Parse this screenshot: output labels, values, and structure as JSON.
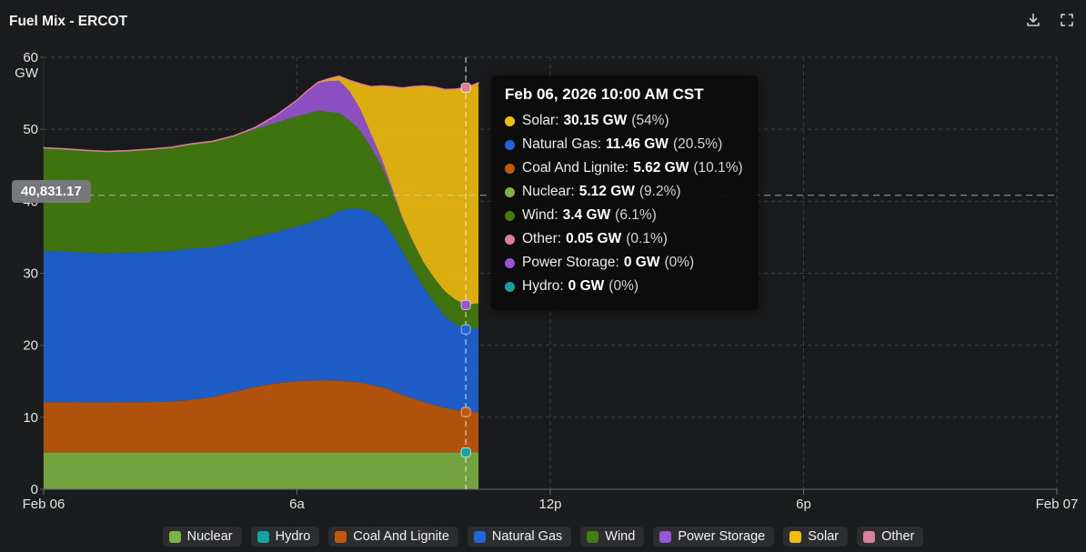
{
  "header": {
    "title": "Fuel Mix - ERCOT",
    "download_icon": "download",
    "fullscreen_icon": "fullscreen"
  },
  "axis_pointer": {
    "label": "40,831.17",
    "value_gw": 40.83
  },
  "crosshair": {
    "time_hours": 10
  },
  "tooltip": {
    "title": "Feb 06, 2026 10:00 AM CST",
    "rows": [
      {
        "name": "Solar",
        "value": "30.15 GW",
        "percent": "(54%)",
        "color": "#F2BE0E"
      },
      {
        "name": "Natural Gas",
        "value": "11.46 GW",
        "percent": "(20.5%)",
        "color": "#1F65D8"
      },
      {
        "name": "Coal And Lignite",
        "value": "5.62 GW",
        "percent": "(10.1%)",
        "color": "#C2590B"
      },
      {
        "name": "Nuclear",
        "value": "5.12 GW",
        "percent": "(9.2%)",
        "color": "#7CB342"
      },
      {
        "name": "Wind",
        "value": "3.4 GW",
        "percent": "(6.1%)",
        "color": "#437D0F"
      },
      {
        "name": "Other",
        "value": "0.05 GW",
        "percent": "(0.1%)",
        "color": "#DC7F9B"
      },
      {
        "name": "Power Storage",
        "value": "0 GW",
        "percent": "(0%)",
        "color": "#9855D4"
      },
      {
        "name": "Hydro",
        "value": "0 GW",
        "percent": "(0%)",
        "color": "#16A1A4"
      }
    ]
  },
  "legend": {
    "items": [
      {
        "label": "Nuclear",
        "color": "#7CB342"
      },
      {
        "label": "Hydro",
        "color": "#16A1A4"
      },
      {
        "label": "Coal And Lignite",
        "color": "#C2590B"
      },
      {
        "label": "Natural Gas",
        "color": "#1F65D8"
      },
      {
        "label": "Wind",
        "color": "#437D0F"
      },
      {
        "label": "Power Storage",
        "color": "#9855D4"
      },
      {
        "label": "Solar",
        "color": "#F2BE0E"
      },
      {
        "label": "Other",
        "color": "#DC7F9B"
      }
    ]
  },
  "chart_data": {
    "type": "area",
    "stacked": true,
    "title": "Fuel Mix - ERCOT",
    "ylabel": "GW",
    "ylim": [
      0,
      60
    ],
    "y_ticks": [
      0,
      10,
      20,
      30,
      40,
      50,
      60
    ],
    "x_unit": "hours after Feb 06 00:00",
    "x_ticks": [
      {
        "t": 0,
        "label": "Feb 06"
      },
      {
        "t": 6,
        "label": "6a"
      },
      {
        "t": 12,
        "label": "12p"
      },
      {
        "t": 18,
        "label": "6p"
      },
      {
        "t": 24,
        "label": "Feb 07"
      }
    ],
    "grid": true,
    "legend_position": "bottom",
    "x": [
      0,
      0.5,
      1,
      1.5,
      2,
      2.5,
      3,
      3.5,
      4,
      4.5,
      5,
      5.5,
      6,
      6.25,
      6.5,
      6.75,
      7,
      7.25,
      7.5,
      7.75,
      8,
      8.25,
      8.5,
      8.75,
      9,
      9.25,
      9.5,
      9.75,
      10,
      10.3
    ],
    "series": [
      {
        "name": "Nuclear",
        "color": "#7CB342",
        "values": [
          5.1,
          5.1,
          5.1,
          5.1,
          5.1,
          5.1,
          5.1,
          5.1,
          5.1,
          5.1,
          5.1,
          5.1,
          5.1,
          5.1,
          5.1,
          5.1,
          5.1,
          5.1,
          5.1,
          5.1,
          5.1,
          5.1,
          5.1,
          5.1,
          5.1,
          5.1,
          5.1,
          5.1,
          5.12,
          5.12
        ]
      },
      {
        "name": "Hydro",
        "color": "#16A1A4",
        "values": [
          0,
          0,
          0,
          0,
          0,
          0,
          0,
          0,
          0,
          0,
          0,
          0,
          0,
          0,
          0,
          0,
          0,
          0,
          0,
          0,
          0,
          0,
          0,
          0,
          0,
          0,
          0,
          0,
          0,
          0
        ]
      },
      {
        "name": "Coal And Lignite",
        "color": "#C2590B",
        "values": [
          7.0,
          7.0,
          6.95,
          6.95,
          7.0,
          7.0,
          7.05,
          7.3,
          7.7,
          8.4,
          9.1,
          9.6,
          9.9,
          9.95,
          10.0,
          10.0,
          9.95,
          9.85,
          9.7,
          9.4,
          9.1,
          8.6,
          8.0,
          7.5,
          7.0,
          6.6,
          6.2,
          5.9,
          5.62,
          5.6
        ]
      },
      {
        "name": "Natural Gas",
        "color": "#1F65D8",
        "values": [
          21.0,
          20.9,
          20.8,
          20.7,
          20.7,
          20.8,
          20.9,
          21.0,
          20.8,
          20.7,
          20.8,
          21.0,
          21.5,
          21.8,
          22.3,
          22.7,
          23.6,
          24.0,
          24.2,
          23.9,
          23.3,
          21.8,
          19.9,
          17.8,
          15.9,
          14.2,
          12.7,
          11.9,
          11.46,
          11.6
        ]
      },
      {
        "name": "Wind",
        "color": "#437D0F",
        "values": [
          14.3,
          14.25,
          14.2,
          14.15,
          14.2,
          14.3,
          14.4,
          14.55,
          14.7,
          14.85,
          15.0,
          15.2,
          15.3,
          15.3,
          15.2,
          14.6,
          13.6,
          12.3,
          10.8,
          9.1,
          7.5,
          5.9,
          4.5,
          3.9,
          3.5,
          3.45,
          3.5,
          3.45,
          3.4,
          3.5
        ]
      },
      {
        "name": "Power Storage",
        "color": "#9855D4",
        "values": [
          0,
          0,
          0,
          0,
          0,
          0,
          0,
          0,
          0,
          0,
          0.2,
          1.0,
          2.2,
          3.2,
          3.8,
          4.3,
          4.5,
          4.0,
          3.0,
          1.9,
          1.0,
          0.5,
          0.2,
          0.1,
          0,
          0,
          0,
          0,
          0,
          0
        ]
      },
      {
        "name": "Solar",
        "color": "#F2BE0E",
        "values": [
          0,
          0,
          0,
          0,
          0,
          0,
          0,
          0,
          0,
          0,
          0,
          0,
          0,
          0,
          0.1,
          0.3,
          0.6,
          1.5,
          3.5,
          6.5,
          10.0,
          14.0,
          18.0,
          21.5,
          24.5,
          26.5,
          28.0,
          29.2,
          30.15,
          30.6
        ]
      },
      {
        "name": "Other",
        "color": "#DC7F9B",
        "values": [
          0.05,
          0.05,
          0.05,
          0.05,
          0.05,
          0.05,
          0.05,
          0.05,
          0.05,
          0.05,
          0.05,
          0.05,
          0.05,
          0.05,
          0.05,
          0.05,
          0.05,
          0.05,
          0.05,
          0.05,
          0.05,
          0.05,
          0.05,
          0.05,
          0.05,
          0.05,
          0.05,
          0.05,
          0.05,
          0.05
        ]
      }
    ]
  }
}
